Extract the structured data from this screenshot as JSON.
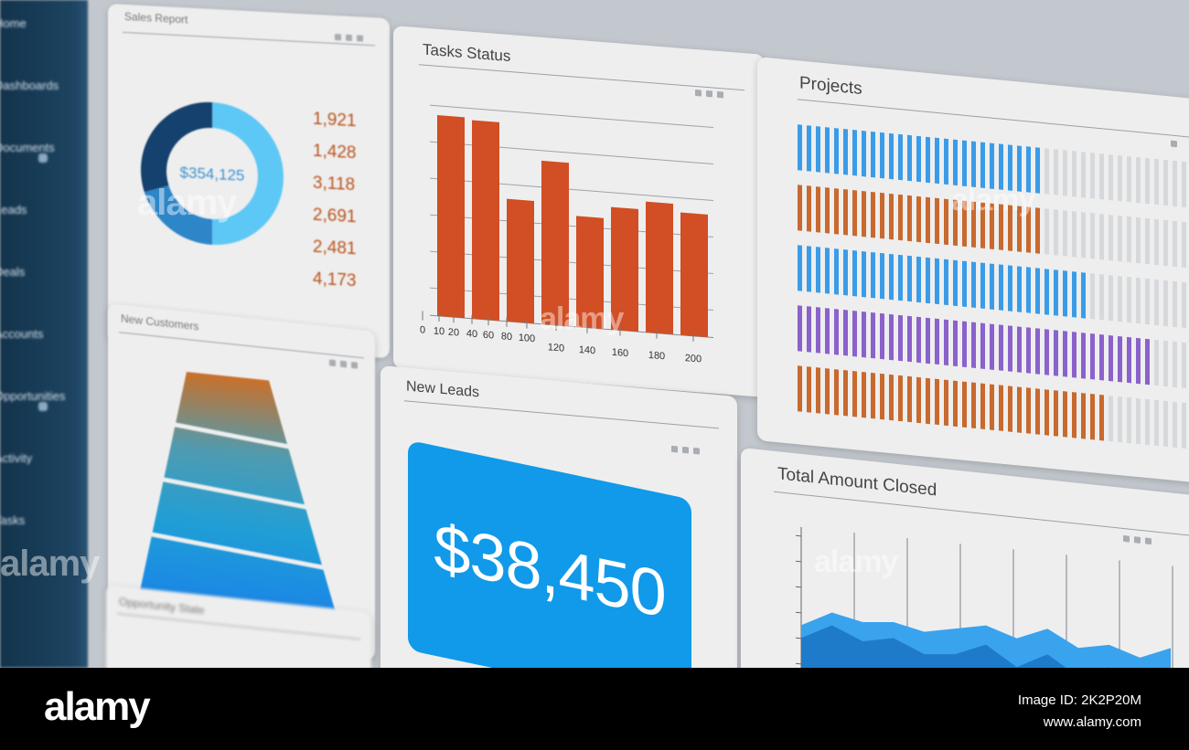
{
  "sidebar": {
    "items": [
      {
        "label": "Home",
        "icon": "home-icon"
      },
      {
        "label": "Dashboards",
        "icon": "dashboard-icon"
      },
      {
        "label": "Documents",
        "icon": "document-icon"
      },
      {
        "label": "Leads",
        "icon": "leads-icon"
      },
      {
        "label": "Deals",
        "icon": "deals-icon"
      },
      {
        "label": "Accounts",
        "icon": "accounts-icon"
      },
      {
        "label": "Opportunities",
        "icon": "opportunity-icon"
      },
      {
        "label": "Activity",
        "icon": "activity-icon"
      },
      {
        "label": "Tasks",
        "icon": "tasks-icon"
      }
    ]
  },
  "cards": {
    "sales_report": {
      "title": "Sales Report",
      "center_value": "$354,125"
    },
    "tasks_status": {
      "title": "Tasks Status"
    },
    "projects": {
      "title": "Projects"
    },
    "new_customers": {
      "title": "New Customers"
    },
    "new_leads": {
      "title": "New Leads",
      "value": "$38,450"
    },
    "total_amount_closed": {
      "title": "Total Amount Closed"
    },
    "opportunity_state": {
      "title": "Opportunity State"
    }
  },
  "footer": {
    "brand": "alamy",
    "image_id": "Image ID: 2K2P20M",
    "site": "www.alamy.com"
  },
  "watermark": "alamy",
  "colors": {
    "sidebar_bg": "#1a3f5c",
    "accent_orange": "#d24e24",
    "accent_blue": "#129bea",
    "donut_dark": "#14416d",
    "donut_mid": "#2d86c8",
    "donut_light": "#5dc8f6",
    "legend_orange": "#b9541e",
    "project_blue": "#3a9ce8",
    "project_orange": "#c8692e",
    "project_purple": "#8a62cc"
  },
  "chart_data": [
    {
      "type": "pie",
      "title": "Sales Report",
      "center_label": "$354,125",
      "values": [
        1921,
        1428,
        3118,
        2691,
        2481,
        4173
      ],
      "labels": [
        "1,921",
        "1,428",
        "3,118",
        "2,691",
        "2,481",
        "4,173"
      ]
    },
    {
      "type": "bar",
      "title": "Tasks Status",
      "values": [
        172,
        170,
        105,
        140,
        95,
        105,
        112,
        105
      ],
      "x_ticks": [
        "0",
        "10",
        "20",
        "40",
        "60",
        "80",
        "100",
        "120",
        "140",
        "160",
        "180",
        "200"
      ]
    },
    {
      "type": "bar",
      "title": "Projects",
      "orientation": "horizontal",
      "series": [
        {
          "color": "#3a9ce8",
          "values": [
            0.62
          ]
        },
        {
          "color": "#c8692e",
          "values": [
            0.62
          ]
        },
        {
          "color": "#3a9ce8",
          "values": [
            0.72
          ]
        },
        {
          "color": "#8a62cc",
          "values": [
            0.88
          ]
        },
        {
          "color": "#c8692e",
          "values": [
            0.78
          ]
        }
      ]
    },
    {
      "type": "area",
      "title": "Total Amount Closed",
      "series": [
        {
          "color": "#1e7bc9",
          "values": [
            0.55,
            0.8,
            0.6,
            0.7,
            0.5,
            0.55,
            0.75,
            0.45,
            0.7,
            0.4,
            0.6,
            0.35,
            0.5
          ]
        },
        {
          "color": "#3aa3ee",
          "values": [
            0.75,
            1.0,
            0.9,
            0.95,
            0.85,
            0.95,
            1.05,
            0.9,
            1.1,
            0.85,
            0.95,
            0.8,
            1.0
          ]
        }
      ]
    },
    {
      "type": "area",
      "title": "New Customers",
      "levels": 4,
      "colors": [
        "#c9702a",
        "#4f9bb0",
        "#1f9ed6",
        "#1a86e6"
      ]
    }
  ]
}
